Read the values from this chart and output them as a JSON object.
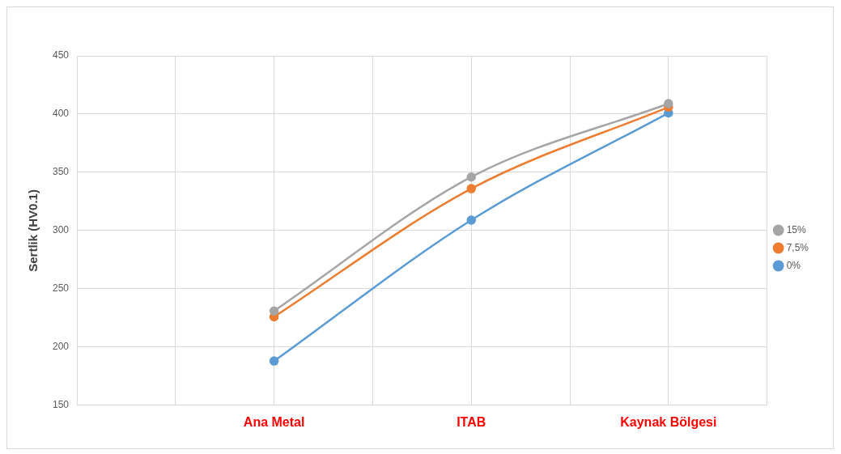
{
  "chart_data": {
    "type": "line",
    "ylabel": "Sertlik (HV0.1)",
    "categories": [
      null,
      null,
      "Ana Metal",
      null,
      "ITAB",
      null,
      "Kaynak Bölgesi",
      null
    ],
    "series": [
      {
        "name": "0%",
        "color": "#5b9bd5",
        "values": [
          null,
          null,
          188,
          null,
          309,
          null,
          401,
          null
        ]
      },
      {
        "name": "7,5%",
        "color": "#ed7d31",
        "values": [
          null,
          null,
          226,
          null,
          336,
          null,
          406,
          null
        ]
      },
      {
        "name": "15%",
        "color": "#a5a5a5",
        "values": [
          null,
          null,
          231,
          null,
          346,
          null,
          409,
          null
        ]
      }
    ],
    "ylim": [
      150,
      450
    ],
    "yticks": [
      150,
      200,
      250,
      300,
      350,
      400,
      450
    ],
    "grid": true,
    "legend": "right",
    "marker": "circle"
  }
}
